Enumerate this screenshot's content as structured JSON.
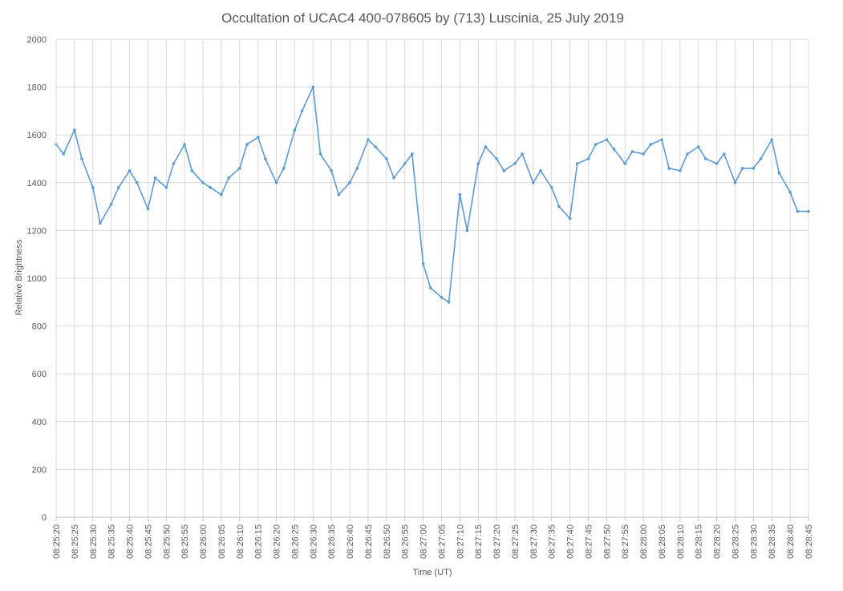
{
  "chart_data": {
    "type": "line",
    "title": "Occultation of UCAC4 400-078605 by (713) Luscinia, 25 July 2019",
    "xlabel": "Time (UT)",
    "ylabel": "Relative Brightness",
    "ylim": [
      0,
      2000
    ],
    "yticks": [
      0,
      200,
      400,
      600,
      800,
      1000,
      1200,
      1400,
      1600,
      1800,
      2000
    ],
    "xlim": [
      "08:25:20",
      "08:28:45"
    ],
    "xtick_labels": [
      "08:25:20",
      "08:25:25",
      "08:25:30",
      "08:25:35",
      "08:25:40",
      "08:25:45",
      "08:25:50",
      "08:25:55",
      "08:26:00",
      "08:26:05",
      "08:26:10",
      "08:26:15",
      "08:26:20",
      "08:26:25",
      "08:26:30",
      "08:26:35",
      "08:26:40",
      "08:26:45",
      "08:26:50",
      "08:26:55",
      "08:27:00",
      "08:27:05",
      "08:27:10",
      "08:27:15",
      "08:27:20",
      "08:27:25",
      "08:27:30",
      "08:27:35",
      "08:27:40",
      "08:27:45",
      "08:27:50",
      "08:27:55",
      "08:28:00",
      "08:28:05",
      "08:28:10",
      "08:28:15",
      "08:28:20",
      "08:28:25",
      "08:28:30",
      "08:28:35",
      "08:28:40",
      "08:28:45"
    ],
    "grid": true,
    "legend": "none",
    "series_color": "#5B9BD5",
    "series": [
      {
        "x": [
          "08:25:20",
          "08:25:22",
          "08:25:25",
          "08:25:27",
          "08:25:30",
          "08:25:32",
          "08:25:35",
          "08:25:37",
          "08:25:40",
          "08:25:42",
          "08:25:45",
          "08:25:47",
          "08:25:50",
          "08:25:52",
          "08:25:55",
          "08:25:57",
          "08:26:00",
          "08:26:02",
          "08:26:05",
          "08:26:07",
          "08:26:10",
          "08:26:12",
          "08:26:15",
          "08:26:17",
          "08:26:20",
          "08:26:22",
          "08:26:25",
          "08:26:27",
          "08:26:30",
          "08:26:32",
          "08:26:35",
          "08:26:37",
          "08:26:40",
          "08:26:42",
          "08:26:45",
          "08:26:47",
          "08:26:50",
          "08:26:52",
          "08:26:55",
          "08:26:57",
          "08:27:00",
          "08:27:02",
          "08:27:05",
          "08:27:07",
          "08:27:10",
          "08:27:12",
          "08:27:15",
          "08:27:17",
          "08:27:20",
          "08:27:22",
          "08:27:25",
          "08:27:27",
          "08:27:30",
          "08:27:32",
          "08:27:35",
          "08:27:37",
          "08:27:40",
          "08:27:42",
          "08:27:45",
          "08:27:47",
          "08:27:50",
          "08:27:52",
          "08:27:55",
          "08:27:57",
          "08:28:00",
          "08:28:02",
          "08:28:05",
          "08:28:07",
          "08:28:10",
          "08:28:12",
          "08:28:15",
          "08:28:17",
          "08:28:20",
          "08:28:22",
          "08:28:25",
          "08:28:27",
          "08:28:30",
          "08:28:32",
          "08:28:35",
          "08:28:37",
          "08:28:40",
          "08:28:42",
          "08:28:45"
        ],
        "y": [
          1560,
          1520,
          1620,
          1500,
          1380,
          1230,
          1310,
          1380,
          1450,
          1400,
          1290,
          1420,
          1380,
          1480,
          1560,
          1450,
          1400,
          1380,
          1350,
          1420,
          1460,
          1560,
          1590,
          1500,
          1400,
          1460,
          1620,
          1700,
          1800,
          1520,
          1450,
          1350,
          1400,
          1460,
          1580,
          1550,
          1500,
          1420,
          1480,
          1520,
          1060,
          960,
          920,
          900,
          1350,
          1200,
          1480,
          1550,
          1500,
          1450,
          1480,
          1520,
          1400,
          1450,
          1380,
          1300,
          1250,
          1480,
          1500,
          1560,
          1580,
          1540,
          1480,
          1530,
          1520,
          1560,
          1580,
          1460,
          1450,
          1520,
          1550,
          1500,
          1480,
          1520,
          1400,
          1460,
          1460,
          1500,
          1580,
          1440,
          1360,
          1280,
          1280
        ]
      }
    ]
  }
}
